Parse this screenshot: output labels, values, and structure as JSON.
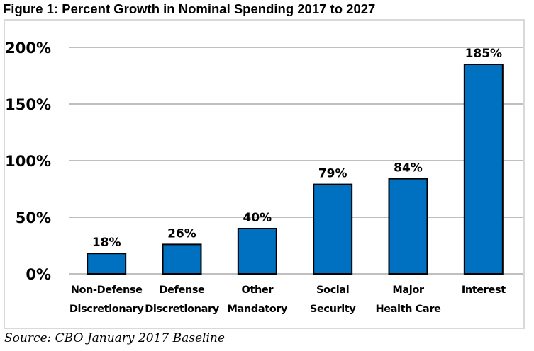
{
  "chart_data": {
    "type": "bar",
    "title": "Figure 1: Percent Growth in Nominal Spending 2017 to 2027",
    "categories": [
      [
        "Non-Defense",
        "Discretionary"
      ],
      [
        "Defense",
        "Discretionary"
      ],
      [
        "Other",
        "Mandatory"
      ],
      [
        "Social",
        "Security"
      ],
      [
        "Major",
        "Health Care"
      ],
      [
        "Interest"
      ]
    ],
    "values": [
      18,
      26,
      40,
      79,
      84,
      185
    ],
    "data_labels": [
      "18%",
      "26%",
      "40%",
      "79%",
      "84%",
      "185%"
    ],
    "xlabel": "",
    "ylabel": "",
    "ylim": [
      0,
      200
    ],
    "yticks": [
      0,
      50,
      100,
      150,
      200
    ],
    "ytick_labels": [
      "0%",
      "50%",
      "100%",
      "150%",
      "200%"
    ],
    "grid": true,
    "bar_color": "#0070C0",
    "bar_edge_color": "#000000",
    "grid_color": "#bfbfbf",
    "source": "Source: CBO January 2017 Baseline"
  }
}
